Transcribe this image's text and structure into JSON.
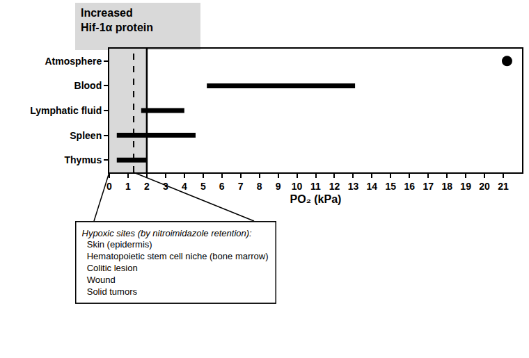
{
  "chart_data": {
    "type": "range",
    "categories": [
      "Atmosphere",
      "Blood",
      "Lymphatic fluid",
      "Spleen",
      "Thymus"
    ],
    "low": [
      21.2,
      5.2,
      1.7,
      0.4,
      0.4
    ],
    "high": [
      null,
      13.1,
      4.0,
      4.6,
      2.0
    ],
    "color": "#000000",
    "marker": "circle",
    "x_label": "PO₂ (kPa)",
    "xlim": [
      0,
      22
    ],
    "xticks": [
      0,
      1,
      2,
      3,
      4,
      5,
      6,
      7,
      8,
      9,
      10,
      11,
      12,
      13,
      14,
      15,
      16,
      17,
      18,
      19,
      20,
      21
    ],
    "grid": false,
    "band": [
      0,
      2
    ],
    "band_label": [
      "Increased",
      "Hif-1α protein"
    ],
    "dashed_line_x": 1.3,
    "callout": {
      "title": "Hypoxic sites (by nitroimidazole retention):",
      "items": [
        "Skin (epidermis)",
        "Hematopoietic stem cell niche (bone marrow)",
        "Colitic lesion",
        "Wound",
        "Solid tumors"
      ],
      "points_to": [
        0,
        1.3
      ]
    }
  }
}
